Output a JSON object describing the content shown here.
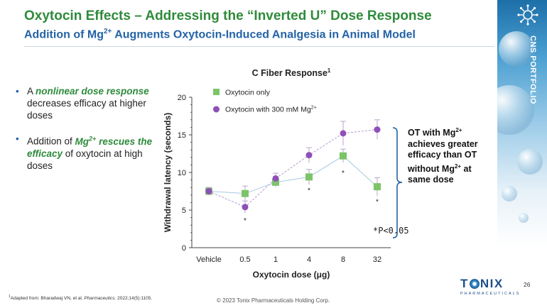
{
  "header": {
    "title": "Oxytocin Effects – Addressing the “Inverted U” Dose Response",
    "subtitle_pre": "Addition of Mg",
    "subtitle_sup": "2+",
    "subtitle_post": " Augments Oxytocin-Induced Analgesia in Animal Model"
  },
  "sidebar": {
    "label": "CNS PORTFOLIO"
  },
  "bullets": [
    {
      "pre": "A ",
      "emph": "nonlinear dose response",
      "post": " decreases efficacy at higher doses"
    },
    {
      "pre": "Addition of ",
      "emph_main": "Mg",
      "emph_sup": "2+",
      "emph_rest": " rescues the efficacy",
      "post": " of oxytocin at high doses"
    }
  ],
  "callout": {
    "line1_pre": "OT with Mg",
    "line1_sup": "2+",
    "line2": "achieves greater efficacy than OT without Mg",
    "line2_sup": "2+",
    "line3": " at same dose"
  },
  "colors": {
    "green": "#2e8b3a",
    "blue": "#2463a6",
    "series_green": "#7bc467",
    "series_purple": "#8e4fb8",
    "error": "#b9a6cf"
  },
  "chart_data": {
    "type": "line",
    "title": "C Fiber Response",
    "title_sup": "1",
    "xlabel": "Oxytocin dose (μg)",
    "ylabel": "Withdrawal latency (seconds)",
    "categories": [
      "Vehicle",
      "0.5",
      "1",
      "4",
      "8",
      "32"
    ],
    "ylim": [
      0,
      20
    ],
    "yticks": [
      "0",
      "5",
      "10",
      "15",
      "20"
    ],
    "series": [
      {
        "name": "Oxytocin only",
        "marker": "square",
        "color": "#7bc467",
        "values": [
          7.5,
          7.2,
          8.7,
          9.4,
          12.2,
          8.1
        ],
        "errors": [
          0.5,
          1.0,
          0.6,
          1.0,
          0.9,
          1.2
        ]
      },
      {
        "name": "Oxytocin with 300 mM Mg",
        "name_sup": "2+",
        "marker": "circle",
        "color": "#8e4fb8",
        "values": [
          7.5,
          5.4,
          9.2,
          12.3,
          15.2,
          15.7
        ],
        "errors": [
          0.5,
          0.8,
          0.7,
          1.0,
          1.6,
          1.3
        ]
      }
    ],
    "significance": [
      {
        "category": "0.5",
        "y": 3.7,
        "label": "*"
      },
      {
        "category": "4",
        "y": 7.7,
        "label": "*"
      },
      {
        "category": "8",
        "y": 10.0,
        "label": "*"
      },
      {
        "category": "32",
        "y": 6.2,
        "label": "*"
      }
    ],
    "annotation": "*P<0.05"
  },
  "footnote": {
    "sup": "1",
    "pre": "Adapted from: Bharadwaj VN, et al. ",
    "journal": "Pharmaceutics",
    "post": ". 2022;14(5):1105."
  },
  "copyright": "© 2023 Tonix Pharmaceuticals Holding Corp.",
  "page_number": "26",
  "logo": {
    "pre": "T",
    "post": "NIX",
    "sub": "PHARMACEUTICALS"
  }
}
